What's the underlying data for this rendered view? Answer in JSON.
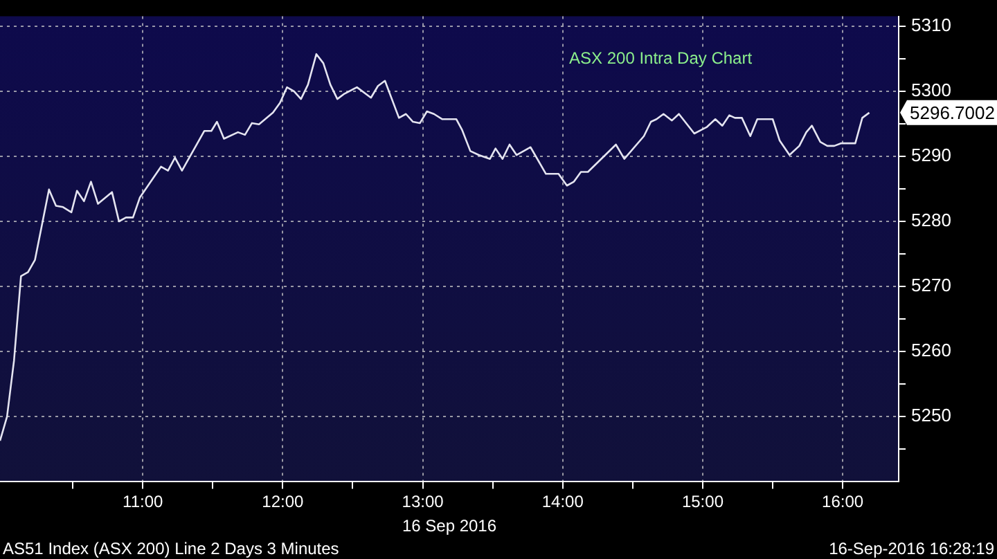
{
  "chart_data": {
    "type": "line",
    "title": "ASX 200 Intra Day Chart",
    "xlabel": "16 Sep 2016",
    "x": [
      9.98,
      10.03,
      10.08,
      10.13,
      10.18,
      10.23,
      10.33,
      10.38,
      10.43,
      10.49,
      10.53,
      10.58,
      10.63,
      10.68,
      10.78,
      10.83,
      10.88,
      10.93,
      10.98,
      11.13,
      11.18,
      11.23,
      11.28,
      11.44,
      11.49,
      11.53,
      11.58,
      11.68,
      11.73,
      11.78,
      11.83,
      11.93,
      11.98,
      12.03,
      12.08,
      12.13,
      12.18,
      12.24,
      12.29,
      12.34,
      12.39,
      12.44,
      12.53,
      12.63,
      12.68,
      12.73,
      12.83,
      12.88,
      12.93,
      12.98,
      13.03,
      13.08,
      13.14,
      13.24,
      13.28,
      13.34,
      13.4,
      13.48,
      13.52,
      13.57,
      13.62,
      13.67,
      13.77,
      13.88,
      13.97,
      14.03,
      14.08,
      14.13,
      14.18,
      14.38,
      14.44,
      14.58,
      14.63,
      14.67,
      14.72,
      14.78,
      14.83,
      14.94,
      15.03,
      15.09,
      15.14,
      15.19,
      15.23,
      15.28,
      15.34,
      15.39,
      15.5,
      15.55,
      15.62,
      15.69,
      15.74,
      15.78,
      15.84,
      15.89,
      15.94,
      15.99,
      16.09,
      16.14,
      16.19
    ],
    "series": [
      {
        "color": "#e4e4f0",
        "values": [
          5246.3,
          5250,
          5258.6,
          5271.6,
          5272.2,
          5274.1,
          5284.9,
          5282.4,
          5282.2,
          5281.4,
          5284.7,
          5283.1,
          5286.1,
          5282.7,
          5284.5,
          5280,
          5280.6,
          5280.6,
          5283.7,
          5288.4,
          5287.8,
          5289.8,
          5287.8,
          5293.9,
          5293.9,
          5295.3,
          5292.7,
          5293.7,
          5293.3,
          5295.1,
          5294.9,
          5296.7,
          5298.2,
          5300.6,
          5300,
          5298.8,
          5301,
          5305.7,
          5304.3,
          5301,
          5298.8,
          5299.6,
          5300.6,
          5299,
          5300.8,
          5301.6,
          5295.9,
          5296.5,
          5295.3,
          5295.1,
          5296.9,
          5296.5,
          5295.7,
          5295.7,
          5294.1,
          5290.8,
          5290.2,
          5289.6,
          5291.2,
          5289.6,
          5291.8,
          5290.2,
          5291.4,
          5287.3,
          5287.3,
          5285.5,
          5286.1,
          5287.6,
          5287.6,
          5291.8,
          5289.6,
          5293.1,
          5295.3,
          5295.7,
          5296.5,
          5295.5,
          5296.5,
          5293.5,
          5294.5,
          5295.7,
          5294.7,
          5296.3,
          5295.9,
          5295.9,
          5293.1,
          5295.7,
          5295.7,
          5292.4,
          5290.2,
          5291.6,
          5293.7,
          5294.7,
          5292.2,
          5291.6,
          5291.6,
          5292,
          5292,
          5295.9,
          5296.7
        ]
      }
    ],
    "xlim": [
      9.98,
      16.4
    ],
    "xticks": [
      {
        "value": 10.5,
        "label": null
      },
      {
        "value": 11,
        "label": "11:00"
      },
      {
        "value": 11.5,
        "label": null
      },
      {
        "value": 12,
        "label": "12:00"
      },
      {
        "value": 12.5,
        "label": null
      },
      {
        "value": 13,
        "label": "13:00"
      },
      {
        "value": 13.5,
        "label": null
      },
      {
        "value": 14,
        "label": "14:00"
      },
      {
        "value": 14.5,
        "label": null
      },
      {
        "value": 15,
        "label": "15:00"
      },
      {
        "value": 15.5,
        "label": null
      },
      {
        "value": 16,
        "label": "16:00"
      }
    ],
    "ylim": [
      5240,
      5311.5
    ],
    "yticks": [
      {
        "value": 5245,
        "label": null
      },
      5250,
      {
        "value": 5255,
        "label": null
      },
      5260,
      {
        "value": 5265,
        "label": null
      },
      5270,
      {
        "value": 5275,
        "label": null
      },
      5280,
      {
        "value": 5285,
        "label": null
      },
      5290,
      {
        "value": 5295,
        "label": null
      },
      5300,
      {
        "value": 5305,
        "label": null
      },
      5310
    ],
    "grid": true,
    "legend": false,
    "marker": "none",
    "line_style": "solid",
    "annotations": [
      {
        "text": "5296.7002",
        "x": 16.19,
        "y": 5296.7
      },
      "AS51 Index (ASX 200) Line 2 Days 3 Minutes",
      "16-Sep-2016 16:28:19"
    ]
  }
}
